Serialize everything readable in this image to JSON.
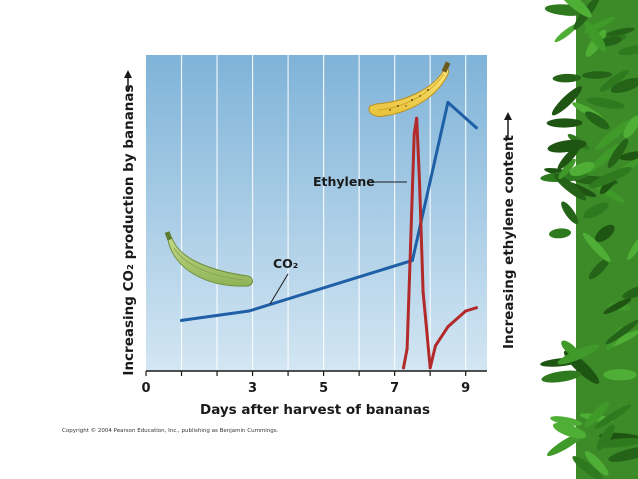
{
  "colors": {
    "plot_background_top": "#7fb3d8",
    "plot_background_bottom": "#d3e6f3",
    "co2_line": "#1f5fa6",
    "ethylene_line": "#b22a2a",
    "border_foliage": "#2f7a1f"
  },
  "chart_data": {
    "type": "line",
    "title": "",
    "xlabel": "Days after harvest of bananas",
    "ylabel_left": "Increasing CO₂ production by bananas",
    "ylabel_right": "Increasing ethylene content",
    "x_ticks": [
      "0",
      "3",
      "5",
      "7",
      "9"
    ],
    "x_tick_values": [
      0,
      3,
      5,
      7,
      9
    ],
    "xlim": [
      0,
      9.6
    ],
    "ylim": [
      0,
      100
    ],
    "grid": "vertical lines",
    "series": [
      {
        "name": "CO₂",
        "x": [
          1,
          2.9,
          7.5,
          8.5,
          9.3
        ],
        "y": [
          16,
          19,
          35,
          85,
          77
        ]
      },
      {
        "name": "Ethylene",
        "x": [
          7.25,
          7.35,
          7.45,
          7.55,
          7.62,
          7.7,
          7.8,
          8.0,
          8.15,
          8.5,
          9.0,
          9.3
        ],
        "y": [
          1,
          7,
          40,
          75,
          80,
          60,
          25,
          1,
          8,
          14,
          19,
          20
        ]
      }
    ],
    "annotations": [
      {
        "text": "Ethylene",
        "series": "Ethylene"
      },
      {
        "text": "CO₂",
        "series": "CO₂"
      }
    ],
    "images": [
      "green-banana",
      "ripe-banana"
    ],
    "credit": "Copyright © 2004 Pearson Education, Inc., publishing as Benjamin Cummings."
  }
}
